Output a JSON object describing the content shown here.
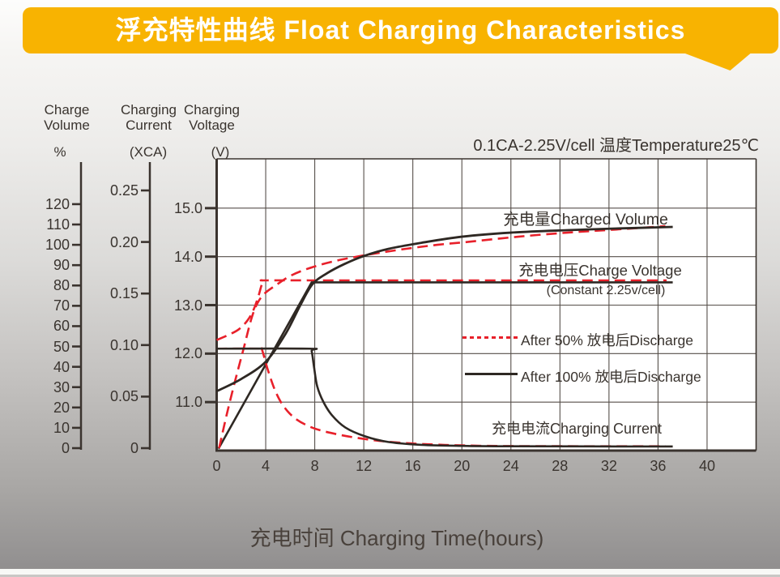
{
  "banner": {
    "title": "浮充特性曲线 Float Charging Characteristics",
    "color": "#F8B301",
    "text_color": "#FFFFFF"
  },
  "condition": "0.1CA-2.25V/cell   温度Temperature25℃",
  "axes_headers": {
    "volume": {
      "line1": "Charge",
      "line2": "Volume",
      "unit": "%"
    },
    "current": {
      "line1": "Charging",
      "line2": "Current",
      "unit": "(XCA)"
    },
    "voltage": {
      "line1": "Charging",
      "line2": "Voltage",
      "unit": "(V)"
    }
  },
  "labels": {
    "charged_volume": "充电量Charged Volume",
    "charge_voltage": "充电电压Charge Voltage",
    "charge_voltage_note": "(Constant 2.25v/cell)",
    "charging_current": "充电电流Charging Current",
    "x_title": "充电时间 Charging Time(hours)"
  },
  "legend": [
    {
      "label": "After 50% 放电后Discharge",
      "style": "red-dashed",
      "color": "#E8202A"
    },
    {
      "label": "After 100% 放电后Discharge",
      "style": "black-solid",
      "color": "#2E2823"
    }
  ],
  "chart_data": {
    "type": "line",
    "title": "浮充特性曲线 Float Charging Characteristics",
    "condition": "0.1CA-2.25V/cell 温度Temperature25℃",
    "xlabel": "充电时间 Charging Time(hours)",
    "grid": true,
    "x_axis": {
      "range": [
        0,
        44
      ],
      "ticks": [
        0,
        4,
        8,
        12,
        16,
        20,
        24,
        28,
        32,
        36,
        40
      ],
      "tick_labels": [
        "0",
        "4",
        "8",
        "12",
        "16",
        "20",
        "24",
        "28",
        "32",
        "36",
        "40"
      ]
    },
    "voltage_axis": {
      "name": "Charging Voltage (V)",
      "range": [
        10,
        16
      ],
      "ticks": [
        11,
        12,
        13,
        14,
        15
      ],
      "tick_labels": [
        "11.0",
        "12.0",
        "13.0",
        "14.0",
        "15.0"
      ]
    },
    "volume_axis": {
      "name": "Charge Volume (%)",
      "range": [
        0,
        120
      ],
      "ticks": [
        0,
        10,
        20,
        30,
        40,
        50,
        60,
        70,
        80,
        90,
        100,
        110,
        120
      ],
      "tick_labels": [
        "0",
        "10",
        "20",
        "30",
        "40",
        "50",
        "60",
        "70",
        "80",
        "90",
        "100",
        "110",
        "120"
      ]
    },
    "current_axis": {
      "name": "Charging Current (XCA)",
      "range": [
        0,
        0.25
      ],
      "ticks": [
        0,
        0.05,
        0.1,
        0.15,
        0.2,
        0.25
      ],
      "tick_labels": [
        "0",
        "0.05",
        "0.10",
        "0.15",
        "0.20",
        "0.25"
      ]
    },
    "series": [
      {
        "name": "charge-voltage-after-50pct-discharge",
        "unit": "V",
        "color": "#E8202A",
        "dash": [
          13,
          7
        ],
        "width": 2.6,
        "smooth": true,
        "points": [
          [
            0,
            12.28
          ],
          [
            1,
            12.39
          ],
          [
            1.8,
            12.5
          ],
          [
            2.5,
            12.68
          ],
          [
            3,
            12.9
          ],
          [
            3.4,
            13.18
          ],
          [
            3.65,
            13.4
          ],
          [
            3.85,
            13.5
          ],
          [
            4.1,
            13.51
          ],
          [
            10,
            13.51
          ],
          [
            36.7,
            13.51
          ]
        ]
      },
      {
        "name": "charge-voltage-after-100pct-discharge",
        "unit": "V",
        "color": "#2E2823",
        "dash": null,
        "width": 2.6,
        "smooth": false,
        "points": [
          [
            0.15,
            10.04
          ],
          [
            7.75,
            13.47
          ],
          [
            37.2,
            13.47
          ]
        ]
      },
      {
        "name": "charged-volume-after-50pct-discharge",
        "unit": "pct",
        "color": "#E8202A",
        "dash": [
          13,
          7
        ],
        "width": 2.6,
        "smooth": true,
        "points": [
          [
            0.2,
            0
          ],
          [
            0.8,
            16
          ],
          [
            1.5,
            33
          ],
          [
            2.2,
            49
          ],
          [
            2.8,
            63
          ],
          [
            3.3,
            71
          ],
          [
            3.9,
            76
          ],
          [
            4.8,
            80
          ],
          [
            6.1,
            85
          ],
          [
            7.8,
            89
          ],
          [
            10,
            92.5
          ],
          [
            12.7,
            95.5
          ],
          [
            15.4,
            98
          ],
          [
            18,
            100
          ],
          [
            20.6,
            101.5
          ],
          [
            24.6,
            104
          ],
          [
            28.6,
            106
          ],
          [
            32.5,
            107.5
          ],
          [
            36.6,
            109.2
          ]
        ]
      },
      {
        "name": "charged-volume-after-100pct-discharge",
        "unit": "pct",
        "color": "#2E2823",
        "dash": null,
        "width": 2.8,
        "smooth": true,
        "points": [
          [
            0,
            28
          ],
          [
            2,
            34
          ],
          [
            4,
            42.5
          ],
          [
            5.6,
            56
          ],
          [
            6.8,
            70
          ],
          [
            7.8,
            80.5
          ],
          [
            9,
            86
          ],
          [
            10.4,
            90.5
          ],
          [
            12,
            94.5
          ],
          [
            14,
            98
          ],
          [
            16.7,
            101
          ],
          [
            20,
            104
          ],
          [
            24,
            106
          ],
          [
            28.6,
            107.2
          ],
          [
            32.5,
            108
          ],
          [
            37.2,
            108.8
          ]
        ]
      },
      {
        "name": "charging-current-after-50pct-discharge",
        "unit": "CA",
        "color": "#E8202A",
        "dash": [
          13,
          7
        ],
        "width": 2.6,
        "smooth": true,
        "points": [
          [
            0,
            0.0965
          ],
          [
            3.55,
            0.0965
          ],
          [
            3.7,
            0.0955
          ],
          [
            4.2,
            0.075
          ],
          [
            4.8,
            0.055
          ],
          [
            5.5,
            0.04
          ],
          [
            6.5,
            0.028
          ],
          [
            8,
            0.019
          ],
          [
            10,
            0.013
          ],
          [
            12,
            0.009
          ],
          [
            14,
            0.0062
          ],
          [
            16,
            0.0045
          ],
          [
            18,
            0.0034
          ],
          [
            20,
            0.0027
          ],
          [
            24,
            0.002
          ],
          [
            36.6,
            0.0018
          ]
        ]
      },
      {
        "name": "charging-current-after-100pct-discharge",
        "unit": "CA",
        "color": "#2E2823",
        "dash": null,
        "width": 2.6,
        "smooth": true,
        "points": [
          [
            0,
            0.0965
          ],
          [
            7.55,
            0.0965
          ],
          [
            7.75,
            0.094
          ],
          [
            7.95,
            0.078
          ],
          [
            8.2,
            0.06
          ],
          [
            8.7,
            0.045
          ],
          [
            9.4,
            0.032
          ],
          [
            10.5,
            0.02
          ],
          [
            12.1,
            0.0115
          ],
          [
            14,
            0.006
          ],
          [
            16.7,
            0.0032
          ],
          [
            20,
            0.0022
          ],
          [
            24,
            0.0018
          ],
          [
            37.2,
            0.0016
          ]
        ]
      }
    ]
  }
}
